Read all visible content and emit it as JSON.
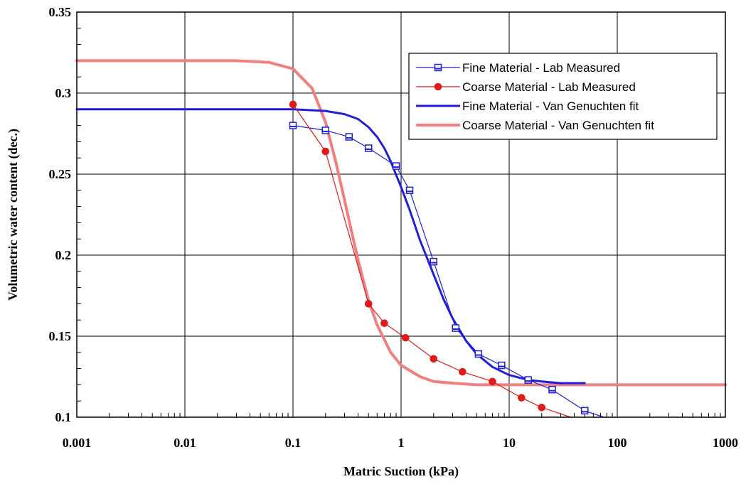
{
  "chart_data": {
    "type": "line",
    "title": "",
    "xlabel": "Matric Suction (kPa)",
    "ylabel": "Volumetric water content (dec.)",
    "x_scale": "log",
    "xlim": [
      0.001,
      1000
    ],
    "ylim": [
      0.1,
      0.35
    ],
    "x_ticks": [
      0.001,
      0.01,
      0.1,
      1,
      10,
      100,
      1000
    ],
    "x_tick_labels": [
      "0.001",
      "0.01",
      "0.1",
      "1",
      "10",
      "100",
      "1000"
    ],
    "y_ticks": [
      0.1,
      0.15,
      0.2,
      0.25,
      0.3,
      0.35
    ],
    "y_tick_labels": [
      "0.1",
      "0.15",
      "0.2",
      "0.25",
      "0.3",
      "0.35"
    ],
    "grid": true,
    "legend_position": "top-right",
    "series": [
      {
        "name": "Fine Material - Lab Measured",
        "color": "#1f1fd6",
        "marker": "square",
        "line_width": 1.2,
        "x": [
          0.1,
          0.2,
          0.33,
          0.5,
          0.9,
          1.2,
          2.0,
          3.2,
          5.2,
          8.5,
          15,
          25,
          50
        ],
        "y": [
          0.28,
          0.277,
          0.273,
          0.266,
          0.255,
          0.24,
          0.196,
          0.155,
          0.139,
          0.132,
          0.123,
          0.117,
          0.104
        ],
        "extend_to": [
          75,
          0.1
        ]
      },
      {
        "name": "Coarse Material - Lab Measured",
        "color": "#e01b1b",
        "marker": "circle",
        "line_width": 1.2,
        "x": [
          0.1,
          0.2,
          0.5,
          0.7,
          1.1,
          2.0,
          3.7,
          7.0,
          13,
          20
        ],
        "y": [
          0.293,
          0.264,
          0.17,
          0.158,
          0.149,
          0.136,
          0.128,
          0.122,
          0.112,
          0.106
        ],
        "extend_to": [
          37,
          0.1
        ]
      },
      {
        "name": "Fine Material - Van Genuchten fit",
        "color": "#1f1fd6",
        "marker": "none",
        "line_width": 3,
        "x": [
          0.001,
          0.01,
          0.1,
          0.2,
          0.3,
          0.4,
          0.5,
          0.6,
          0.7,
          0.8,
          1.0,
          1.2,
          1.5,
          2.0,
          2.5,
          3.0,
          4.0,
          5.0,
          7.0,
          10,
          15,
          20,
          30,
          50
        ],
        "y": [
          0.29,
          0.29,
          0.29,
          0.289,
          0.287,
          0.284,
          0.279,
          0.273,
          0.266,
          0.258,
          0.242,
          0.228,
          0.209,
          0.188,
          0.172,
          0.161,
          0.147,
          0.139,
          0.131,
          0.126,
          0.123,
          0.122,
          0.121,
          0.121
        ]
      },
      {
        "name": "Coarse Material - Van Genuchten fit",
        "color": "#f08080",
        "marker": "none",
        "line_width": 4,
        "x": [
          0.001,
          0.03,
          0.06,
          0.1,
          0.15,
          0.2,
          0.25,
          0.3,
          0.35,
          0.4,
          0.5,
          0.6,
          0.8,
          1.0,
          1.5,
          2.0,
          3.0,
          5.0,
          10,
          100,
          1000
        ],
        "y": [
          0.32,
          0.32,
          0.319,
          0.315,
          0.303,
          0.282,
          0.257,
          0.234,
          0.214,
          0.197,
          0.172,
          0.157,
          0.14,
          0.132,
          0.125,
          0.122,
          0.121,
          0.12,
          0.12,
          0.12,
          0.12
        ]
      }
    ]
  }
}
